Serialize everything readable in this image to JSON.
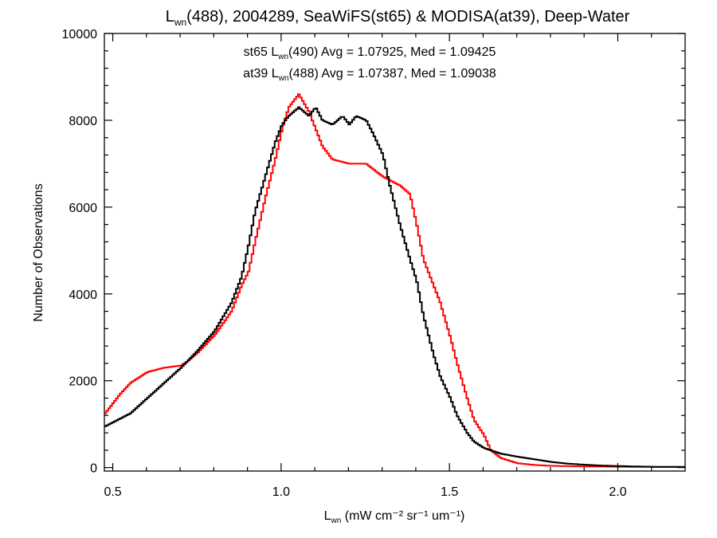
{
  "chart_data": {
    "type": "line",
    "title": {
      "prefix": "L",
      "sub": "wn",
      "rest": "(488), 2004289, SeaWiFS(st65) & MODISA(at39), Deep-Water"
    },
    "xlabel": {
      "prefix": "L",
      "sub": "wn",
      "units": "(mW cm⁻² sr⁻¹ um⁻¹)"
    },
    "ylabel": "Number of Observations",
    "xlim": [
      0.475,
      2.2
    ],
    "ylim": [
      -80,
      10000
    ],
    "x_ticks": [
      "0.5",
      "1.0",
      "1.5",
      "2.0"
    ],
    "y_ticks": [
      "0",
      "2000",
      "4000",
      "6000",
      "8000",
      "10000"
    ],
    "annotations": [
      {
        "name": "st65",
        "color": "#000000",
        "prefix": "st65 L",
        "sub": "wn",
        "rest": "(490) Avg = 1.07925, Med = 1.09425"
      },
      {
        "name": "at39",
        "color": "#ff0000",
        "prefix": "at39 L",
        "sub": "wn",
        "rest": "(488) Avg = 1.07387, Med = 1.09038"
      }
    ],
    "series": [
      {
        "name": "st65",
        "color": "#000000",
        "x": [
          0.475,
          0.55,
          0.6,
          0.65,
          0.7,
          0.75,
          0.8,
          0.85,
          0.88,
          0.9,
          0.92,
          0.95,
          0.98,
          1.0,
          1.02,
          1.05,
          1.08,
          1.1,
          1.12,
          1.15,
          1.18,
          1.2,
          1.22,
          1.25,
          1.27,
          1.3,
          1.32,
          1.35,
          1.38,
          1.4,
          1.42,
          1.45,
          1.47,
          1.5,
          1.52,
          1.55,
          1.57,
          1.6,
          1.65,
          1.7,
          1.75,
          1.8,
          1.85,
          1.9,
          1.95,
          2.0,
          2.05,
          2.1,
          2.2
        ],
        "y": [
          950,
          1250,
          1600,
          1950,
          2300,
          2700,
          3150,
          3800,
          4400,
          5100,
          5900,
          6700,
          7500,
          7900,
          8100,
          8300,
          8100,
          8300,
          8000,
          7900,
          8100,
          7900,
          8100,
          8000,
          7700,
          7200,
          6500,
          5600,
          4800,
          4300,
          3500,
          2600,
          2100,
          1600,
          1200,
          800,
          600,
          450,
          320,
          250,
          190,
          130,
          90,
          65,
          45,
          35,
          25,
          18,
          15
        ]
      },
      {
        "name": "at39",
        "color": "#ff0000",
        "x": [
          0.475,
          0.52,
          0.55,
          0.6,
          0.65,
          0.7,
          0.72,
          0.75,
          0.8,
          0.85,
          0.88,
          0.9,
          0.92,
          0.95,
          0.98,
          1.0,
          1.02,
          1.05,
          1.08,
          1.1,
          1.12,
          1.15,
          1.2,
          1.25,
          1.3,
          1.35,
          1.38,
          1.4,
          1.42,
          1.45,
          1.47,
          1.5,
          1.52,
          1.55,
          1.57,
          1.6,
          1.62,
          1.65,
          1.7,
          1.75,
          1.8,
          1.9,
          2.0,
          2.1,
          2.2
        ],
        "y": [
          1250,
          1700,
          1950,
          2200,
          2300,
          2350,
          2450,
          2650,
          3050,
          3600,
          4200,
          4500,
          5200,
          6200,
          7100,
          7800,
          8300,
          8600,
          8200,
          7800,
          7400,
          7100,
          7000,
          7000,
          6700,
          6500,
          6300,
          5600,
          4800,
          4200,
          3800,
          3000,
          2400,
          1600,
          1100,
          750,
          400,
          220,
          100,
          60,
          40,
          25,
          20,
          15,
          12
        ]
      }
    ]
  }
}
